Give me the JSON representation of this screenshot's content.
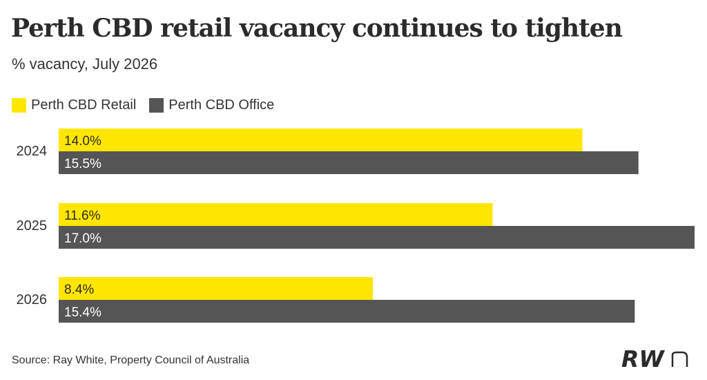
{
  "title": "Perth CBD retail vacancy continues to tighten",
  "subtitle": "% vacancy, July 2026",
  "source": "Source: Ray White, Property Council of Australia",
  "logo": "RWn",
  "colors": {
    "retail": "#FFE600",
    "office": "#555555",
    "label_text": "#2b2b2b",
    "office_label_text": "#ffffff"
  },
  "chart_data": {
    "type": "bar",
    "orientation": "horizontal",
    "categories": [
      "2024",
      "2025",
      "2026"
    ],
    "series": [
      {
        "name": "Perth CBD Retail",
        "values": [
          14.0,
          11.6,
          8.4
        ],
        "labels": [
          "14.0%",
          "11.6%",
          "8.4%"
        ]
      },
      {
        "name": "Perth CBD Office",
        "values": [
          15.5,
          17.0,
          15.4
        ],
        "labels": [
          "15.5%",
          "17.0%",
          "15.4%"
        ]
      }
    ],
    "title": "Perth CBD retail vacancy continues to tighten",
    "subtitle": "% vacancy, July 2026",
    "xlabel": "",
    "ylabel": "",
    "xlim": [
      0,
      17.0
    ],
    "grid": false,
    "legend": "top-left"
  }
}
